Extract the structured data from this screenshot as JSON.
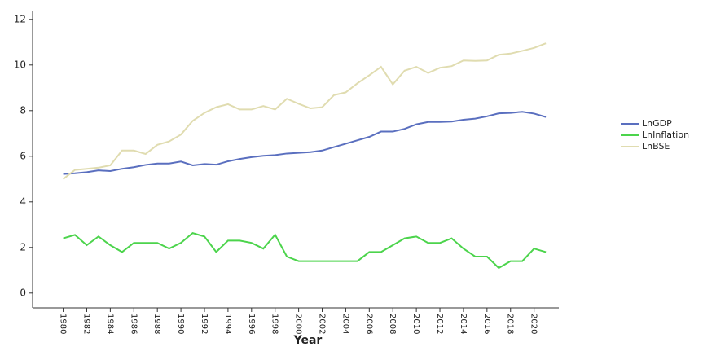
{
  "chart_data": {
    "type": "line",
    "x": [
      1980,
      1981,
      1982,
      1983,
      1984,
      1985,
      1986,
      1987,
      1988,
      1989,
      1990,
      1991,
      1992,
      1993,
      1994,
      1995,
      1996,
      1997,
      1998,
      1999,
      2000,
      2001,
      2002,
      2003,
      2004,
      2005,
      2006,
      2007,
      2008,
      2009,
      2010,
      2011,
      2012,
      2013,
      2014,
      2015,
      2016,
      2017,
      2018,
      2019,
      2020,
      2021
    ],
    "series": [
      {
        "name": "LnGDP",
        "color": "#5a6fbf",
        "values": [
          5.22,
          5.25,
          5.3,
          5.38,
          5.35,
          5.45,
          5.52,
          5.62,
          5.68,
          5.68,
          5.77,
          5.6,
          5.66,
          5.63,
          5.78,
          5.88,
          5.96,
          6.02,
          6.05,
          6.12,
          6.15,
          6.18,
          6.25,
          6.4,
          6.55,
          6.7,
          6.85,
          7.08,
          7.08,
          7.2,
          7.4,
          7.5,
          7.5,
          7.52,
          7.6,
          7.65,
          7.75,
          7.88,
          7.9,
          7.95,
          7.87,
          7.72
        ]
      },
      {
        "name": "LnInflation",
        "color": "#4cd44c",
        "values": [
          2.4,
          2.55,
          2.1,
          2.48,
          2.1,
          1.8,
          2.2,
          2.2,
          2.2,
          1.95,
          2.2,
          2.63,
          2.48,
          1.8,
          2.3,
          2.3,
          2.2,
          1.95,
          2.56,
          1.6,
          1.4,
          1.4,
          1.4,
          1.4,
          1.4,
          1.4,
          1.8,
          1.8,
          2.1,
          2.4,
          2.48,
          2.2,
          2.2,
          2.4,
          1.95,
          1.6,
          1.6,
          1.1,
          1.4,
          1.4,
          1.95,
          1.8
        ]
      },
      {
        "name": "LnBSE",
        "color": "#e0dcb0",
        "values": [
          5.0,
          5.4,
          5.45,
          5.5,
          5.6,
          6.25,
          6.25,
          6.1,
          6.5,
          6.65,
          6.95,
          7.55,
          7.9,
          8.15,
          8.28,
          8.05,
          8.05,
          8.2,
          8.05,
          8.52,
          8.3,
          8.1,
          8.15,
          8.68,
          8.8,
          9.2,
          9.55,
          9.92,
          9.15,
          9.75,
          9.92,
          9.65,
          9.88,
          9.95,
          10.2,
          10.18,
          10.2,
          10.45,
          10.5,
          10.62,
          10.75,
          10.95
        ]
      }
    ],
    "x_label": "Year",
    "xlim": [
      1977.4,
      2022.1
    ],
    "xticks": [
      1980,
      1982,
      1984,
      1986,
      1988,
      1990,
      1992,
      1994,
      1996,
      1998,
      2000,
      2002,
      2004,
      2006,
      2008,
      2010,
      2012,
      2014,
      2016,
      2018,
      2020
    ],
    "ylim": [
      -0.65,
      12.35
    ],
    "yticks": [
      0,
      2,
      4,
      6,
      8,
      10,
      12
    ],
    "legend": "right"
  }
}
